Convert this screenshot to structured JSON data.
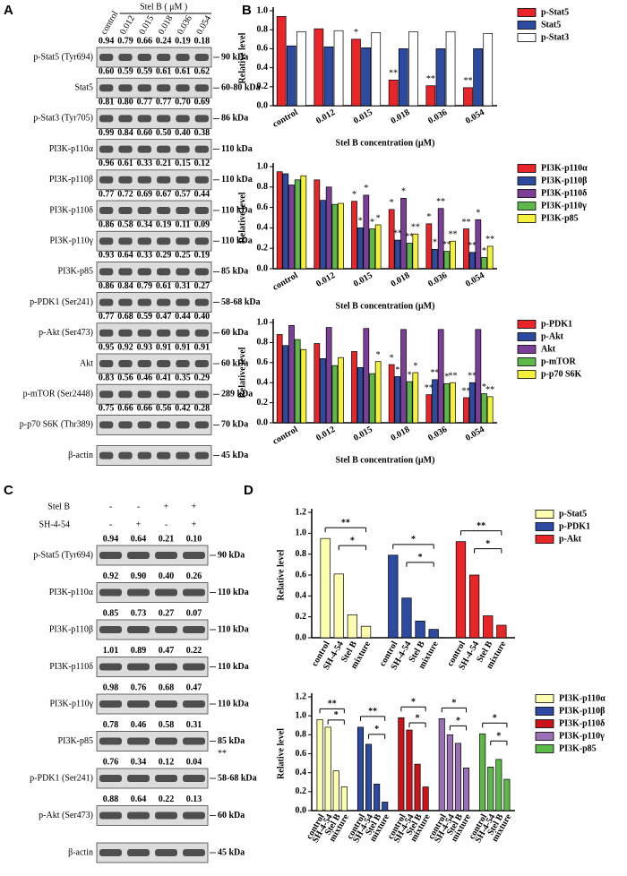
{
  "panel_labels": [
    "A",
    "B",
    "C",
    "D"
  ],
  "blot_a": {
    "treatment": "Stel B ( μM )",
    "lanes": [
      "control",
      "0.012",
      "0.015",
      "0.018",
      "0.036",
      "0.054"
    ],
    "rows": [
      {
        "label": "p-Stat5 (Tyr694)",
        "values": [
          "0.94",
          "0.79",
          "0.66",
          "0.24",
          "0.19",
          "0.18"
        ],
        "size": "90 kDa"
      },
      {
        "label": "Stat5",
        "values": [
          "0.60",
          "0.59",
          "0.59",
          "0.61",
          "0.61",
          "0.62"
        ],
        "size": "60-80 kDa"
      },
      {
        "label": "p-Stat3 (Tyr705)",
        "values": [
          "0.81",
          "0.80",
          "0.77",
          "0.77",
          "0.70",
          "0.69"
        ],
        "size": "86 kDa"
      },
      {
        "label": "PI3K-p110α",
        "values": [
          "0.99",
          "0.84",
          "0.60",
          "0.50",
          "0.40",
          "0.38"
        ],
        "size": "110 kDa"
      },
      {
        "label": "PI3K-p110β",
        "values": [
          "0.96",
          "0.61",
          "0.33",
          "0.21",
          "0.15",
          "0.12"
        ],
        "size": "110 kDa"
      },
      {
        "label": "PI3K-p110δ",
        "values": [
          "0.77",
          "0.72",
          "0.69",
          "0.67",
          "0.57",
          "0.44"
        ],
        "size": "110 kDa"
      },
      {
        "label": "PI3K-p110γ",
        "values": [
          "0.86",
          "0.58",
          "0.34",
          "0.19",
          "0.11",
          "0.09"
        ],
        "size": "110 kDa"
      },
      {
        "label": "PI3K-p85",
        "values": [
          "0.93",
          "0.64",
          "0.33",
          "0.29",
          "0.25",
          "0.19"
        ],
        "size": "85 kDa"
      },
      {
        "label": "p-PDK1 (Ser241)",
        "values": [
          "0.86",
          "0.84",
          "0.79",
          "0.61",
          "0.31",
          "0.27"
        ],
        "size": "58-68 kDa"
      },
      {
        "label": "p-Akt (Ser473)",
        "values": [
          "0.77",
          "0.68",
          "0.59",
          "0.47",
          "0.44",
          "0.40"
        ],
        "size": "60 kDa"
      },
      {
        "label": "Akt",
        "values": [
          "0.95",
          "0.92",
          "0.93",
          "0.91",
          "0.91",
          "0.91"
        ],
        "size": "60 kDa"
      },
      {
        "label": "p-mTOR (Ser2448)",
        "values": [
          "0.83",
          "0.56",
          "0.46",
          "0.41",
          "0.35",
          "0.29"
        ],
        "size": "289 kDa"
      },
      {
        "label": "p-p70 S6K (Thr389)",
        "values": [
          "0.75",
          "0.66",
          "0.66",
          "0.56",
          "0.42",
          "0.28"
        ],
        "size": "70 kDa"
      },
      {
        "label": "β-actin",
        "size": "45 kDa"
      }
    ]
  },
  "blot_c": {
    "conditions": [
      {
        "label": "Stel B",
        "signs": [
          "-",
          "-",
          "+",
          "+"
        ]
      },
      {
        "label": "SH-4-54",
        "signs": [
          "-",
          "+",
          "-",
          "+"
        ]
      }
    ],
    "rows": [
      {
        "label": "p-Stat5 (Tyr694)",
        "values": [
          "0.94",
          "0.64",
          "0.21",
          "0.10"
        ],
        "size": "90 kDa"
      },
      {
        "label": "PI3K-p110α",
        "values": [
          "0.92",
          "0.90",
          "0.40",
          "0.26"
        ],
        "size": "110 kDa"
      },
      {
        "label": "PI3K-p110β",
        "values": [
          "0.85",
          "0.73",
          "0.27",
          "0.07"
        ],
        "size": "110 kDa"
      },
      {
        "label": "PI3K-p110δ",
        "values": [
          "1.01",
          "0.89",
          "0.47",
          "0.22"
        ],
        "size": "110 kDa"
      },
      {
        "label": "PI3K-p110γ",
        "values": [
          "0.98",
          "0.76",
          "0.68",
          "0.47"
        ],
        "size": "110 kDa"
      },
      {
        "label": "PI3K-p85",
        "values": [
          "0.78",
          "0.46",
          "0.58",
          "0.31"
        ],
        "size": "85 kDa",
        "note": "**"
      },
      {
        "label": "p-PDK1 (Ser241)",
        "values": [
          "0.76",
          "0.34",
          "0.12",
          "0.04"
        ],
        "size": "58-68 kDa"
      },
      {
        "label": "p-Akt (Ser473)",
        "values": [
          "0.88",
          "0.64",
          "0.22",
          "0.13"
        ],
        "size": "60 kDa"
      },
      {
        "label": "β-actin",
        "size": "45 kDa"
      }
    ]
  },
  "chart_data": [
    {
      "type": "bar",
      "y_label": "Relative level",
      "x_label": "Stel B concentration (μM)",
      "categories": [
        "control",
        "0.012",
        "0.015",
        "0.018",
        "0.036",
        "0.054"
      ],
      "ylim": [
        0,
        1
      ],
      "yticks": [
        {
          "value": 0,
          "label": "0.0"
        },
        0.2,
        0.4,
        0.6,
        0.8,
        {
          "value": 1,
          "label": "1.0"
        }
      ],
      "legend": "right",
      "series": [
        {
          "name": "p-Stat5",
          "color": "#e8262a",
          "values": [
            0.94,
            0.81,
            0.7,
            0.27,
            0.21,
            0.19
          ],
          "significance": [
            null,
            null,
            "*",
            "**",
            "**",
            "**"
          ]
        },
        {
          "name": "Stat5",
          "color": "#2b4aa0",
          "values": [
            0.63,
            0.62,
            0.61,
            0.6,
            0.6,
            0.6
          ]
        },
        {
          "name": "p-Stat3",
          "color": "#ffffff",
          "values": [
            0.78,
            0.79,
            0.77,
            0.78,
            0.78,
            0.76
          ]
        }
      ]
    },
    {
      "type": "bar",
      "y_label": "Relative level",
      "x_label": "Stel B concentration (μM)",
      "categories": [
        "control",
        "0.012",
        "0.015",
        "0.018",
        "0.036",
        "0.054"
      ],
      "ylim": [
        0,
        1
      ],
      "yticks": [
        {
          "value": 0,
          "label": "0.0"
        },
        0.2,
        0.4,
        0.6,
        0.8,
        {
          "value": 1,
          "label": "1.0"
        }
      ],
      "legend": "right",
      "series": [
        {
          "name": "PI3K-p110α",
          "color": "#e8262a",
          "values": [
            0.95,
            0.87,
            0.66,
            0.58,
            0.44,
            0.39
          ],
          "significance": [
            null,
            null,
            "*",
            "*",
            "*",
            "**"
          ]
        },
        {
          "name": "PI3K-p110β",
          "color": "#2b4aa0",
          "values": [
            0.93,
            0.67,
            0.4,
            0.28,
            0.19,
            0.16
          ],
          "significance": [
            null,
            null,
            "*",
            "**",
            "*",
            "**"
          ]
        },
        {
          "name": "PI3K-p110δ",
          "color": "#7b3f98",
          "values": [
            0.82,
            0.8,
            0.72,
            0.69,
            0.59,
            0.48
          ],
          "significance": [
            null,
            null,
            "*",
            "*",
            "**",
            "*"
          ]
        },
        {
          "name": "PI3K-p110γ",
          "color": "#5cb848",
          "values": [
            0.87,
            0.63,
            0.39,
            0.25,
            0.17,
            0.11
          ],
          "significance": [
            null,
            null,
            "*",
            "**",
            "**",
            "*"
          ]
        },
        {
          "name": "PI3K-p85",
          "color": "#f5f03c",
          "values": [
            0.91,
            0.64,
            0.43,
            0.34,
            0.27,
            0.22
          ],
          "significance": [
            null,
            null,
            "*",
            "**",
            "**",
            "**"
          ]
        }
      ]
    },
    {
      "type": "bar",
      "y_label": "Relative level",
      "x_label": "Stel B concentration (μM)",
      "categories": [
        "control",
        "0.012",
        "0.015",
        "0.018",
        "0.036",
        "0.054"
      ],
      "ylim": [
        0,
        1
      ],
      "yticks": [
        {
          "value": 0,
          "label": "0.0"
        },
        0.2,
        0.4,
        0.6,
        0.8,
        {
          "value": 1,
          "label": "1.0"
        }
      ],
      "legend": "right",
      "series": [
        {
          "name": "p-PDK1",
          "color": "#e8262a",
          "values": [
            0.88,
            0.79,
            0.71,
            0.58,
            0.28,
            0.25
          ],
          "significance": [
            null,
            null,
            null,
            "*",
            "**",
            "**"
          ]
        },
        {
          "name": "p-Akt",
          "color": "#2b4aa0",
          "values": [
            0.77,
            0.64,
            0.55,
            0.46,
            0.43,
            0.4
          ],
          "significance": [
            null,
            null,
            null,
            "*",
            "**",
            "**"
          ]
        },
        {
          "name": "Akt",
          "color": "#7b3f98",
          "values": [
            0.97,
            0.95,
            0.94,
            0.93,
            0.93,
            0.93
          ]
        },
        {
          "name": "p-mTOR",
          "color": "#5cb848",
          "values": [
            0.83,
            0.57,
            0.49,
            0.41,
            0.39,
            0.29
          ],
          "significance": [
            null,
            null,
            null,
            "*",
            "*",
            "*"
          ]
        },
        {
          "name": "p-p70 S6K",
          "color": "#f5f03c",
          "values": [
            0.73,
            0.65,
            0.61,
            0.5,
            0.4,
            0.26
          ],
          "significance": [
            null,
            null,
            "*",
            "*",
            "**",
            "**"
          ]
        }
      ]
    },
    {
      "type": "bar",
      "grouping": "series",
      "y_label": "Relative level",
      "categories": [
        "control",
        "SH-4-54",
        "Stel B",
        "mixture"
      ],
      "ylim": [
        0,
        1.2
      ],
      "yticks": [
        {
          "value": 0,
          "label": "0.0"
        },
        0.2,
        0.4,
        0.6,
        0.8,
        {
          "value": 1,
          "label": "1.0"
        },
        1.2
      ],
      "legend": "right",
      "series": [
        {
          "name": "p-Stat5",
          "color": "#fdfdb0",
          "values": [
            0.95,
            0.61,
            0.22,
            0.11
          ],
          "comparisons": [
            "**",
            "*"
          ]
        },
        {
          "name": "p-PDK1",
          "color": "#2b4aa0",
          "values": [
            0.79,
            0.38,
            0.16,
            0.08
          ],
          "comparisons": [
            "*",
            "*"
          ]
        },
        {
          "name": "p-Akt",
          "color": "#e8262a",
          "values": [
            0.92,
            0.6,
            0.21,
            0.12
          ],
          "comparisons": [
            "**",
            "*"
          ]
        }
      ]
    },
    {
      "type": "bar",
      "grouping": "series",
      "y_label": "Relative level",
      "categories": [
        "control",
        "SH-4-54",
        "Stel B",
        "mixture"
      ],
      "ylim": [
        0,
        1.2
      ],
      "yticks": [
        {
          "value": 0,
          "label": "0.0"
        },
        0.2,
        0.4,
        0.6,
        0.8,
        {
          "value": 1,
          "label": "1.0"
        },
        1.2
      ],
      "legend": "right",
      "series": [
        {
          "name": "PI3K-p110α",
          "color": "#fdfdb0",
          "values": [
            0.96,
            0.88,
            0.42,
            0.25
          ],
          "comparisons": [
            "**",
            "*"
          ]
        },
        {
          "name": "PI3K-p110β",
          "color": "#2b4aa0",
          "values": [
            0.88,
            0.7,
            0.28,
            0.09
          ],
          "comparisons": [
            "**",
            "*"
          ]
        },
        {
          "name": "PI3K-p110δ",
          "color": "#c8141a",
          "values": [
            0.98,
            0.85,
            0.49,
            0.25
          ],
          "comparisons": [
            "*",
            "*"
          ]
        },
        {
          "name": "PI3K-p110γ",
          "color": "#9b6fb5",
          "values": [
            0.97,
            0.8,
            0.71,
            0.45
          ],
          "comparisons": [
            "*",
            "*"
          ]
        },
        {
          "name": "PI3K-p85",
          "color": "#5cb848",
          "values": [
            0.81,
            0.46,
            0.54,
            0.33
          ],
          "comparisons": [
            "*",
            "*"
          ]
        }
      ]
    }
  ]
}
